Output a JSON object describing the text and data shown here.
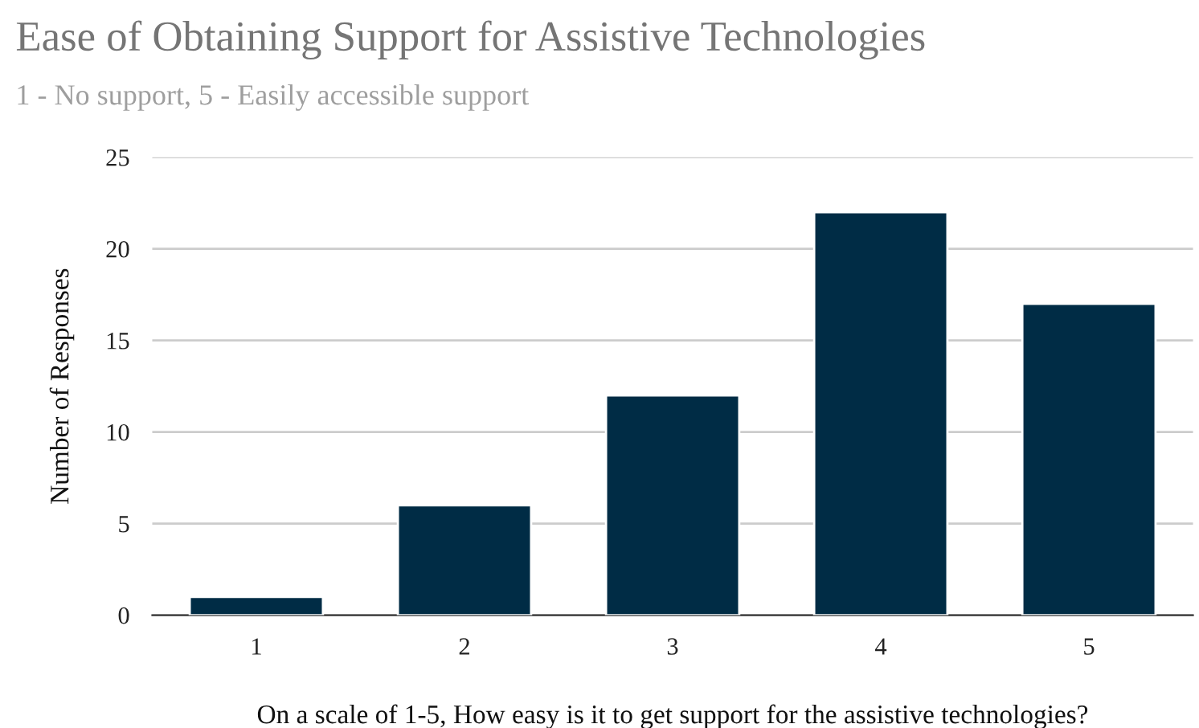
{
  "chart_data": {
    "type": "bar",
    "title": "Ease of Obtaining Support for Assistive Technologies",
    "subtitle": "1 - No support, 5 - Easily accessible support",
    "xlabel": "On a scale of 1-5, How easy is it to get support for the assistive technologies?",
    "ylabel": "Number of Responses",
    "categories": [
      "1",
      "2",
      "3",
      "4",
      "5"
    ],
    "values": [
      1,
      6,
      12,
      22,
      17
    ],
    "color": "#002c45",
    "ylim": [
      0,
      25
    ],
    "yticks": [
      0,
      5,
      10,
      15,
      20,
      25
    ],
    "grid": "y",
    "legend": false
  }
}
